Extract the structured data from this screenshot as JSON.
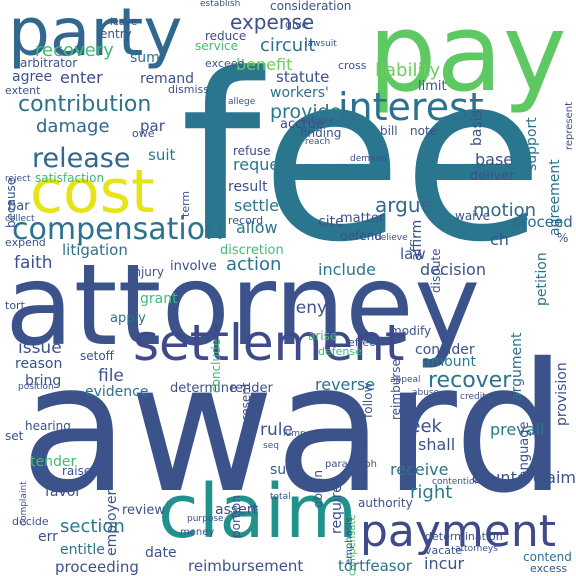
{
  "words": [
    {
      "text": "fee",
      "color": "#2a768e"
    },
    {
      "text": "award",
      "color": "#3b528b"
    },
    {
      "text": "attorney",
      "color": "#3b528b"
    },
    {
      "text": "pay",
      "color": "#5ec962"
    },
    {
      "text": "party",
      "color": "#31688e"
    },
    {
      "text": "cost",
      "color": "#e5e419"
    },
    {
      "text": "claim",
      "color": "#21918c"
    },
    {
      "text": "settlement",
      "color": "#3e4a89"
    },
    {
      "text": "payment",
      "color": "#3e4a89"
    },
    {
      "text": "interest",
      "color": "#2c728e"
    },
    {
      "text": "compensation",
      "color": "#2c728e"
    },
    {
      "text": "release",
      "color": "#31688e"
    },
    {
      "text": "contribution",
      "color": "#2c728e"
    },
    {
      "text": "expense",
      "color": "#3b528b"
    },
    {
      "text": "recovery",
      "color": "#3fbc73"
    },
    {
      "text": "circuit",
      "color": "#2c728e"
    },
    {
      "text": "liability",
      "color": "#6ece58"
    },
    {
      "text": "benefit",
      "color": "#6ece58"
    },
    {
      "text": "action",
      "color": "#2c728e"
    },
    {
      "text": "damage",
      "color": "#31688e"
    },
    {
      "text": "section",
      "color": "#2a788e"
    },
    {
      "text": "recover",
      "color": "#2c728e"
    },
    {
      "text": "argue",
      "color": "#31688e"
    },
    {
      "text": "motion",
      "color": "#31688e"
    },
    {
      "text": "provide",
      "color": "#2a788e"
    },
    {
      "text": "statute",
      "color": "#3b528b"
    },
    {
      "text": "sum",
      "color": "#2c728e"
    },
    {
      "text": "enter",
      "color": "#3e4a89"
    },
    {
      "text": "agree",
      "color": "#3b528b"
    },
    {
      "text": "remand",
      "color": "#3b528b"
    },
    {
      "text": "reduce",
      "color": "#3e4a89"
    },
    {
      "text": "service",
      "color": "#3fbc73"
    },
    {
      "text": "exceed",
      "color": "#3b528b"
    },
    {
      "text": "arbitrator",
      "color": "#3b528b"
    },
    {
      "text": "suit",
      "color": "#2a788e"
    },
    {
      "text": "par",
      "color": "#3b528b"
    },
    {
      "text": "owe",
      "color": "#3b528b"
    },
    {
      "text": "accrue",
      "color": "#3e4a89"
    },
    {
      "text": "workers'",
      "color": "#2c728e"
    },
    {
      "text": "request",
      "color": "#2a788e"
    },
    {
      "text": "settle",
      "color": "#2a788e"
    },
    {
      "text": "result",
      "color": "#3b528b"
    },
    {
      "text": "refuse",
      "color": "#3e4a89"
    },
    {
      "text": "allow",
      "color": "#2a788e"
    },
    {
      "text": "cite",
      "color": "#3b528b"
    },
    {
      "text": "base",
      "color": "#3b528b"
    },
    {
      "text": "deliver",
      "color": "#3b528b"
    },
    {
      "text": "proceed",
      "color": "#31688e"
    },
    {
      "text": "litigation",
      "color": "#2c728e"
    },
    {
      "text": "faith",
      "color": "#3b528b"
    },
    {
      "text": "injury",
      "color": "#3b528b"
    },
    {
      "text": "involve",
      "color": "#3b528b"
    },
    {
      "text": "include",
      "color": "#2a788e"
    },
    {
      "text": "decision",
      "color": "#3b528b"
    },
    {
      "text": "law",
      "color": "#3b528b"
    },
    {
      "text": "grant",
      "color": "#3fbc73"
    },
    {
      "text": "apply",
      "color": "#2c728e"
    },
    {
      "text": "deny",
      "color": "#3b528b"
    },
    {
      "text": "issue",
      "color": "#3b528b"
    },
    {
      "text": "setoff",
      "color": "#3b528b"
    },
    {
      "text": "reason",
      "color": "#3b528b"
    },
    {
      "text": "bring",
      "color": "#3b528b"
    },
    {
      "text": "file",
      "color": "#3b528b"
    },
    {
      "text": "evidence",
      "color": "#2c728e"
    },
    {
      "text": "determine",
      "color": "#3b528b"
    },
    {
      "text": "render",
      "color": "#3b528b"
    },
    {
      "text": "reverse",
      "color": "#2c728e"
    },
    {
      "text": "amount",
      "color": "#2a788e"
    },
    {
      "text": "consider",
      "color": "#3b528b"
    },
    {
      "text": "seek",
      "color": "#3b528b"
    },
    {
      "text": "shall",
      "color": "#3b528b"
    },
    {
      "text": "receive",
      "color": "#2c728e"
    },
    {
      "text": "right",
      "color": "#2a788e"
    },
    {
      "text": "rule",
      "color": "#3b528b"
    },
    {
      "text": "hearing",
      "color": "#3b528b"
    },
    {
      "text": "set",
      "color": "#3b528b"
    },
    {
      "text": "tender",
      "color": "#3fbc73"
    },
    {
      "text": "raise",
      "color": "#3b528b"
    },
    {
      "text": "sue",
      "color": "#3b528b"
    },
    {
      "text": "favor",
      "color": "#3b528b"
    },
    {
      "text": "review",
      "color": "#3b528b"
    },
    {
      "text": "assert",
      "color": "#3b528b"
    },
    {
      "text": "err",
      "color": "#3b528b"
    },
    {
      "text": "entitle",
      "color": "#2c728e"
    },
    {
      "text": "date",
      "color": "#3b528b"
    },
    {
      "text": "proceeding",
      "color": "#3b528b"
    },
    {
      "text": "reimbursement",
      "color": "#3b528b"
    },
    {
      "text": "tortfeasor",
      "color": "#2c728e"
    },
    {
      "text": "incur",
      "color": "#3b528b"
    },
    {
      "text": "determination",
      "color": "#3b528b"
    },
    {
      "text": "authority",
      "color": "#3b528b"
    },
    {
      "text": "prevail",
      "color": "#2a788e"
    },
    {
      "text": "counterclaim",
      "color": "#3b528b"
    },
    {
      "text": "contend",
      "color": "#2c728e"
    },
    {
      "text": "excess",
      "color": "#3b528b"
    },
    {
      "text": "vacate",
      "color": "#3b528b"
    },
    {
      "text": "money",
      "color": "#3b528b"
    },
    {
      "text": "decide",
      "color": "#3b528b"
    },
    {
      "text": "bar",
      "color": "#3b528b"
    },
    {
      "text": "expend",
      "color": "#3b528b"
    },
    {
      "text": "extent",
      "color": "#3b528b"
    },
    {
      "text": "because",
      "color": "#3b528b"
    },
    {
      "text": "dismiss",
      "color": "#3b528b"
    },
    {
      "text": "entry",
      "color": "#3b528b"
    },
    {
      "text": "leave",
      "color": "#3b528b"
    },
    {
      "text": "give",
      "color": "#3b528b"
    },
    {
      "text": "consideration",
      "color": "#3b528b"
    },
    {
      "text": "establish",
      "color": "#3b528b"
    },
    {
      "text": "limit",
      "color": "#3b528b"
    },
    {
      "text": "basis",
      "color": "#3b528b"
    },
    {
      "text": "support",
      "color": "#2c728e"
    },
    {
      "text": "agreement",
      "color": "#2c728e"
    },
    {
      "text": "represent",
      "color": "#3b528b"
    },
    {
      "text": "petition",
      "color": "#2c728e"
    },
    {
      "text": "argument",
      "color": "#2c728e"
    },
    {
      "text": "provision",
      "color": "#3b528b"
    },
    {
      "text": "language",
      "color": "#3b528b"
    },
    {
      "text": "bill",
      "color": "#3b528b"
    },
    {
      "text": "note",
      "color": "#3b528b"
    },
    {
      "text": "affirm",
      "color": "#3b528b"
    },
    {
      "text": "dispute",
      "color": "#3b528b"
    },
    {
      "text": "defend",
      "color": "#3b528b"
    },
    {
      "text": "record",
      "color": "#3b528b"
    },
    {
      "text": "matter",
      "color": "#3b528b"
    },
    {
      "text": "discretion",
      "color": "#3fbc73"
    },
    {
      "text": "waive",
      "color": "#3b528b"
    },
    {
      "text": "satisfaction",
      "color": "#3fbc73"
    },
    {
      "text": "term",
      "color": "#3b528b"
    },
    {
      "text": "finding",
      "color": "#3b528b"
    },
    {
      "text": "enforce",
      "color": "#3b528b"
    },
    {
      "text": "follow",
      "color": "#3b528b"
    },
    {
      "text": "reimburse",
      "color": "#3b528b"
    },
    {
      "text": "modify",
      "color": "#3b528b"
    },
    {
      "text": "effect",
      "color": "#3b528b"
    },
    {
      "text": "present",
      "color": "#3b528b"
    },
    {
      "text": "conclude",
      "color": "#3fbc73"
    },
    {
      "text": "defense",
      "color": "#3fbc73"
    },
    {
      "text": "arise",
      "color": "#3fbc73"
    },
    {
      "text": "obtain",
      "color": "#3b528b"
    },
    {
      "text": "require",
      "color": "#3b528b"
    },
    {
      "text": "employer",
      "color": "#3b528b"
    },
    {
      "text": "portion",
      "color": "#3b528b"
    },
    {
      "text": "compensate",
      "color": "#3fbc73"
    },
    {
      "text": "paragraph",
      "color": "#3b528b"
    },
    {
      "text": "emphasis",
      "color": "#3b528b"
    },
    {
      "text": "tort",
      "color": "#3b528b"
    },
    {
      "text": "reject",
      "color": "#3b528b"
    },
    {
      "text": "collect",
      "color": "#3b528b"
    },
    {
      "text": "lump",
      "color": "#3b528b"
    },
    {
      "text": "cross",
      "color": "#3b528b"
    },
    {
      "text": "lawsuit",
      "color": "#3b528b"
    },
    {
      "text": "ch",
      "color": "#3b528b"
    },
    {
      "text": "%",
      "color": "#3b528b"
    },
    {
      "text": "seq",
      "color": "#3b528b"
    },
    {
      "text": "total",
      "color": "#3b528b"
    },
    {
      "text": "contention",
      "color": "#3b528b"
    },
    {
      "text": "appeal",
      "color": "#3b528b"
    },
    {
      "text": "credit",
      "color": "#3b528b"
    },
    {
      "text": "purpose",
      "color": "#3b528b"
    },
    {
      "text": "attorneys'",
      "color": "#3b528b"
    },
    {
      "text": "complaint",
      "color": "#3b528b"
    },
    {
      "text": "position",
      "color": "#3b528b"
    },
    {
      "text": "allege",
      "color": "#3b528b"
    },
    {
      "text": "reach",
      "color": "#3b528b"
    },
    {
      "text": "demand",
      "color": "#3b528b"
    },
    {
      "text": "believe",
      "color": "#3b528b"
    },
    {
      "text": "abuse",
      "color": "#3b528b"
    }
  ]
}
